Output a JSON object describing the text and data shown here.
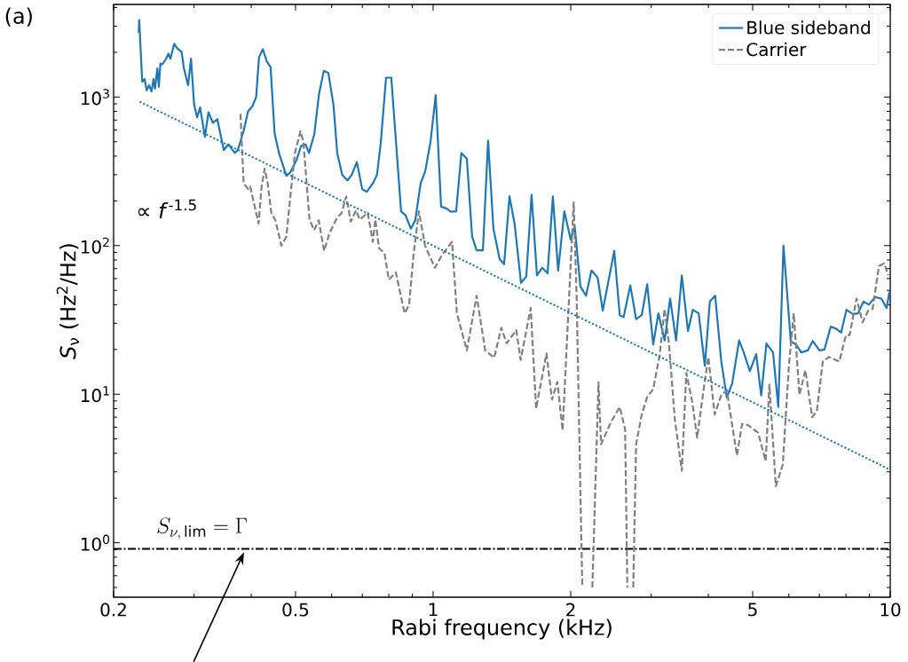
{
  "chart_data": {
    "type": "line",
    "xlabel": "Rabi frequency (kHz)",
    "ylabel": "*S*$_{ν}$  (Hz$^{2}$/Hz)",
    "log": "xy",
    "xlim": [
      0.2,
      10
    ],
    "ylim": [
      0.43,
      4200
    ],
    "xticks": [
      0.2,
      {
        "value": 0.3,
        "label": null
      },
      {
        "value": 0.4,
        "label": null
      },
      0.5,
      {
        "value": 0.6,
        "label": null
      },
      {
        "value": 0.7,
        "label": null
      },
      {
        "value": 0.8,
        "label": null
      },
      {
        "value": 0.9,
        "label": null
      },
      1,
      2,
      {
        "value": 3,
        "label": null
      },
      {
        "value": 4,
        "label": null
      },
      5,
      {
        "value": 6,
        "label": null
      },
      {
        "value": 7,
        "label": null
      },
      {
        "value": 8,
        "label": null
      },
      {
        "value": 9,
        "label": null
      },
      10
    ],
    "yticks": [
      {
        "value": 0.5,
        "label": null
      },
      {
        "value": 0.6,
        "label": null
      },
      {
        "value": 0.7,
        "label": null
      },
      {
        "value": 0.8,
        "label": null
      },
      {
        "value": 0.9,
        "label": null
      },
      {
        "value": 1,
        "label": "10$^{0}$"
      },
      {
        "value": 2,
        "label": null
      },
      {
        "value": 3,
        "label": null
      },
      {
        "value": 4,
        "label": null
      },
      {
        "value": 5,
        "label": null
      },
      {
        "value": 6,
        "label": null
      },
      {
        "value": 7,
        "label": null
      },
      {
        "value": 8,
        "label": null
      },
      {
        "value": 9,
        "label": null
      },
      {
        "value": 10,
        "label": "10$^{1}$"
      },
      {
        "value": 20,
        "label": null
      },
      {
        "value": 30,
        "label": null
      },
      {
        "value": 40,
        "label": null
      },
      {
        "value": 50,
        "label": null
      },
      {
        "value": 60,
        "label": null
      },
      {
        "value": 70,
        "label": null
      },
      {
        "value": 80,
        "label": null
      },
      {
        "value": 90,
        "label": null
      },
      {
        "value": 100,
        "label": "10$^{2}$"
      },
      {
        "value": 200,
        "label": null
      },
      {
        "value": 300,
        "label": null
      },
      {
        "value": 400,
        "label": null
      },
      {
        "value": 500,
        "label": null
      },
      {
        "value": 600,
        "label": null
      },
      {
        "value": 700,
        "label": null
      },
      {
        "value": 800,
        "label": null
      },
      {
        "value": 900,
        "label": null
      },
      {
        "value": 1000,
        "label": "10$^{3}$"
      },
      {
        "value": 2000,
        "label": null
      },
      {
        "value": 3000,
        "label": null
      },
      {
        "value": 4000,
        "label": null
      }
    ],
    "legend": "top right",
    "series": [
      {
        "name": "Blue sideband",
        "color": "#1f77b4",
        "line_style": "solid",
        "x": [
          0.227,
          0.2275,
          0.231,
          0.2338,
          0.2362,
          0.2392,
          0.2421,
          0.2445,
          0.2463,
          0.2493,
          0.2512,
          0.2531,
          0.2557,
          0.2606,
          0.2635,
          0.2662,
          0.2714,
          0.2755,
          0.2817,
          0.285,
          0.291,
          0.2954,
          0.3,
          0.3046,
          0.3092,
          0.3168,
          0.3225,
          0.3298,
          0.3372,
          0.3483,
          0.3566,
          0.3684,
          0.3739,
          0.385,
          0.3937,
          0.4026,
          0.41,
          0.416,
          0.424,
          0.4325,
          0.441,
          0.45,
          0.46,
          0.4775,
          0.4868,
          0.503,
          0.5145,
          0.526,
          0.535,
          0.5495,
          0.5628,
          0.5766,
          0.59,
          0.6052,
          0.617,
          0.6326,
          0.6497,
          0.664,
          0.681,
          0.6996,
          0.716,
          0.738,
          0.754,
          0.768,
          0.789,
          0.81,
          0.851,
          0.87,
          0.894,
          0.914,
          0.939,
          0.961,
          0.987,
          1.013,
          1.041,
          1.069,
          1.093,
          1.123,
          1.153,
          1.185,
          1.217,
          1.245,
          1.285,
          1.319,
          1.355,
          1.398,
          1.43,
          1.469,
          1.508,
          1.557,
          1.599,
          1.642,
          1.687,
          1.733,
          1.78,
          1.828,
          1.877,
          1.937,
          1.999,
          2.04,
          2.1,
          2.16,
          2.22,
          2.29,
          2.35,
          2.49,
          2.56,
          2.61,
          2.7,
          2.78,
          2.86,
          2.94,
          3.03,
          3.11,
          3.21,
          3.3,
          3.4,
          3.5,
          3.61,
          3.7,
          3.81,
          3.93,
          4.03,
          4.14,
          4.27,
          4.39,
          4.51,
          4.67,
          4.78,
          4.93,
          5.09,
          5.22,
          5.36,
          5.54,
          5.69,
          5.84,
          6.06,
          6.22,
          6.39,
          6.6,
          6.77,
          7.0,
          7.18,
          7.41,
          7.61,
          7.81,
          8.02,
          8.28,
          8.5,
          8.74,
          8.98,
          9.26,
          9.56,
          9.82,
          9.96
        ],
        "values": [
          2700,
          3300,
          1270,
          1320,
          1110,
          1200,
          1090,
          1320,
          1140,
          1560,
          1170,
          1680,
          1660,
          1810,
          1960,
          1810,
          2280,
          2130,
          2010,
          1560,
          1200,
          1810,
          890,
          730,
          850,
          540,
          790,
          670,
          710,
          440,
          480,
          420,
          440,
          590,
          800,
          870,
          1000,
          1850,
          2100,
          1740,
          1590,
          570,
          420,
          295,
          310,
          380,
          470,
          480,
          420,
          560,
          1050,
          1500,
          1450,
          890,
          420,
          300,
          275,
          300,
          365,
          240,
          230,
          262,
          300,
          487,
          1350,
          1350,
          170,
          160,
          130,
          148,
          262,
          317,
          500,
          1030,
          183,
          178,
          169,
          170,
          420,
          385,
          115,
          93,
          93,
          510,
          130,
          81,
          75,
          215,
          139,
          56,
          62,
          220,
          63,
          71,
          65,
          214,
          68,
          170,
          110,
          135,
          53,
          46,
          68,
          61,
          36.5,
          92,
          34,
          33,
          54,
          32,
          34,
          55,
          21.6,
          35,
          23,
          44,
          23,
          63,
          26.6,
          37,
          35,
          15.5,
          42,
          46,
          16.6,
          9.5,
          11.8,
          23,
          19.1,
          14.3,
          18.6,
          9.8,
          21.9,
          19.1,
          8.2,
          100,
          22.6,
          21.6,
          19.1,
          19.7,
          22.8,
          19.7,
          20,
          28.5,
          27.6,
          26,
          37,
          34.6,
          35,
          42,
          40,
          45,
          44,
          38,
          49
        ]
      },
      {
        "name": "Carrier",
        "color": "#808080",
        "line_style": "dashed",
        "x": [
          0.379,
          0.385,
          0.394,
          0.398,
          0.406,
          0.415,
          0.4215,
          0.428,
          0.4346,
          0.4425,
          0.4518,
          0.4655,
          0.4775,
          0.489,
          0.4985,
          0.5125,
          0.5202,
          0.5365,
          0.549,
          0.562,
          0.5775,
          0.5932,
          0.617,
          0.631,
          0.6455,
          0.6605,
          0.678,
          0.691,
          0.7195,
          0.738,
          0.7476,
          0.7616,
          0.7826,
          0.8,
          0.829,
          0.866,
          0.886,
          0.906,
          0.931,
          0.96,
          1.009,
          1.047,
          1.1,
          1.127,
          1.185,
          1.245,
          1.3,
          1.36,
          1.41,
          1.448,
          1.52,
          1.554,
          1.635,
          1.68,
          1.77,
          1.82,
          1.87,
          1.92,
          2.03,
          2.06,
          2.12,
          2.17,
          2.23,
          2.3,
          2.33,
          2.45,
          2.56,
          2.63,
          2.66,
          2.7,
          2.74,
          2.78,
          2.86,
          2.94,
          3.03,
          3.13,
          3.21,
          3.28,
          3.38,
          3.5,
          3.58,
          3.69,
          3.78,
          3.92,
          4.0,
          4.13,
          4.27,
          4.39,
          4.62,
          4.74,
          4.88,
          5.14,
          5.34,
          5.44,
          5.62,
          5.82,
          6.0,
          6.15,
          6.33,
          6.52,
          6.75,
          6.91,
          7.12,
          7.34,
          7.74,
          8.0,
          8.15,
          8.44,
          8.7,
          8.95,
          9.15,
          9.45,
          9.7,
          9.9
        ],
        "values": [
          770,
          263,
          240,
          250,
          190,
          141,
          250,
          330,
          263,
          166,
          148,
          100,
          115,
          240,
          420,
          590,
          500,
          150,
          127,
          148,
          92,
          121,
          155,
          166,
          214,
          145,
          173,
          150,
          166,
          106,
          150,
          96,
          89,
          59,
          66,
          35,
          40,
          87,
          170,
          100,
          71,
          87,
          106,
          35,
          19.7,
          46,
          19.7,
          17.6,
          28,
          22,
          27,
          17,
          38,
          8.0,
          18.8,
          9.2,
          12.1,
          5.7,
          195,
          46,
          0.5,
          null,
          0.5,
          12,
          4.6,
          6.5,
          8.2,
          5.8,
          0.5,
          null,
          0.5,
          4.6,
          7.3,
          9.6,
          10.8,
          18.3,
          37.5,
          22,
          6.7,
          3.05,
          13.9,
          8.8,
          5.1,
          11.6,
          17.8,
          7.3,
          9.9,
          10.6,
          3.86,
          6.3,
          6.2,
          5.5,
          3.55,
          11.6,
          2.4,
          3.36,
          15.3,
          35,
          9.9,
          14.5,
          7.0,
          7.7,
          16.6,
          17.8,
          16.6,
          25,
          25,
          44,
          30.5,
          36.5,
          37.5,
          73,
          76,
          63
        ]
      },
      {
        "color": "#1f77b4",
        "line_style": "dotted",
        "x": [
          0.228,
          10
        ],
        "values": [
          930,
          3.1
        ]
      }
    ],
    "ref_lines": [
      {
        "axis": "y",
        "value": 0.91,
        "label": "S_{\\nu,\\,\\mathrm{lim}} = \\Gamma",
        "color": "#000000",
        "line_style": "dashdot"
      }
    ],
    "annotations": [
      "(a)",
      "∝ *f*$^{-1.5}$"
    ]
  }
}
